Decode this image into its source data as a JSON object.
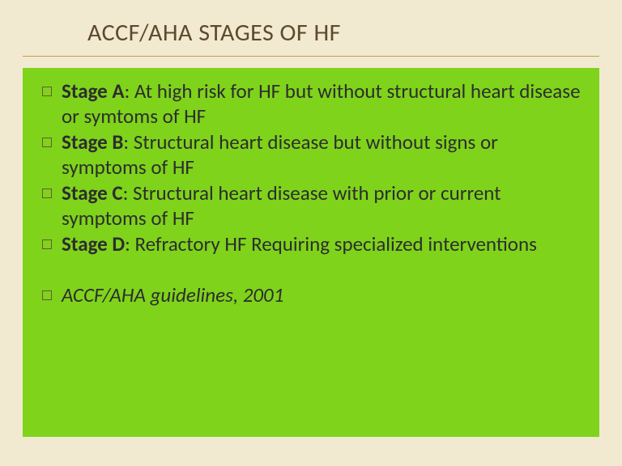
{
  "slide": {
    "title": "ACCF/AHA STAGES OF HF",
    "background_color": "#f2ead0",
    "rule_color": "#c49b5a",
    "title_color": "#5d4a2e",
    "title_fontsize": 30,
    "content_box": {
      "background_color": "#7fd31b",
      "text_color": "#2d2d2d",
      "bullet_fontsize": 25,
      "bullet_marker": "square-outline",
      "bullet_marker_color": "#6b5a32"
    },
    "stages": [
      {
        "label": "Stage A",
        "desc": ": At high risk for HF but without structural heart disease or symtoms of HF"
      },
      {
        "label": "Stage B",
        "desc": ": Structural heart disease but without signs or symptoms of HF"
      },
      {
        "label": "Stage C",
        "desc": ": Structural heart disease with prior or current  symptoms of HF"
      },
      {
        "label": "Stage D",
        "desc": ": Refractory HF Requiring specialized  interventions"
      }
    ],
    "footer_bullet": "ACCF/AHA guidelines, 2001"
  }
}
